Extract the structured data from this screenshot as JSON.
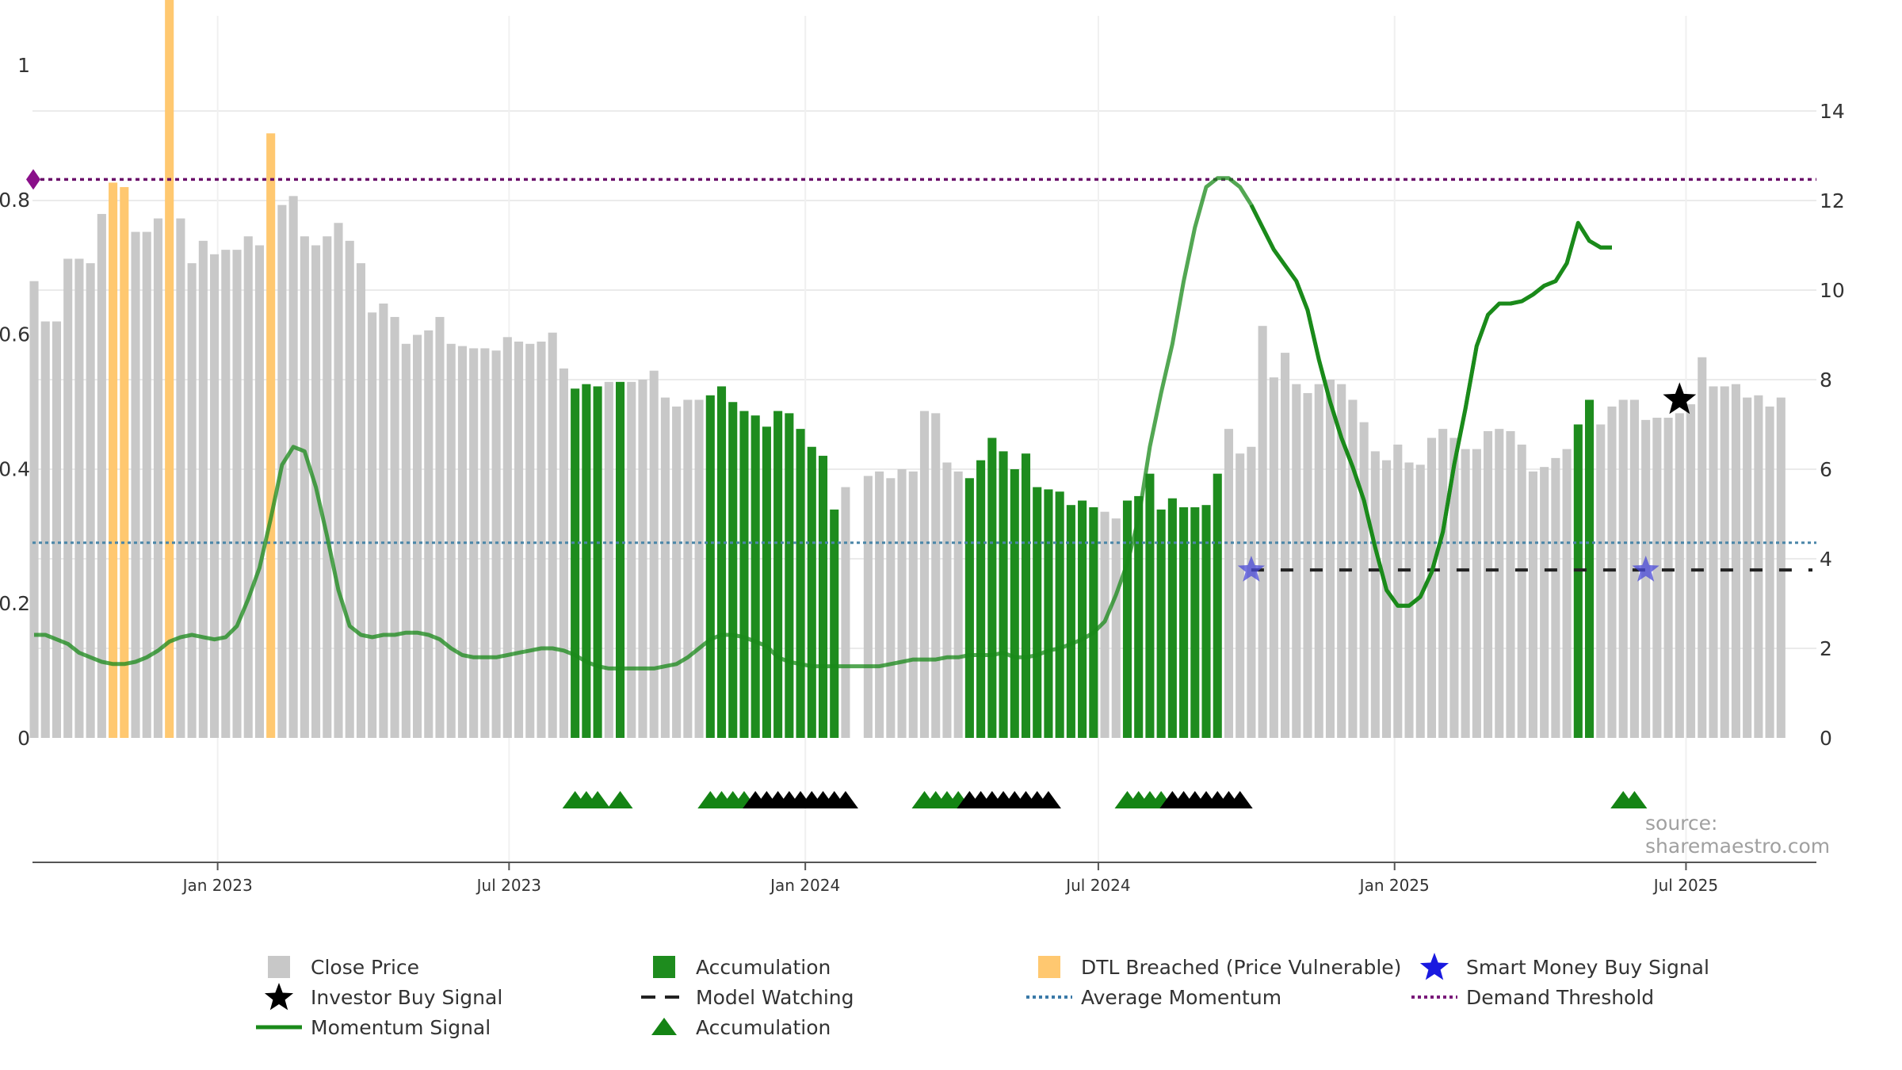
{
  "chart_data": {
    "type": "bar",
    "title": "",
    "source_text": "source: sharemaestro.com",
    "left_axis": {
      "ylim": [
        0,
        1
      ],
      "ticks": [
        0,
        0.2,
        0.4,
        0.6,
        0.8,
        1
      ],
      "tick_labels": [
        "0",
        "0.2",
        "0.4",
        "0.6",
        "0.8",
        "1"
      ]
    },
    "right_axis": {
      "ylim": [
        0,
        15
      ],
      "ticks": [
        0,
        2,
        4,
        6,
        8,
        10,
        12,
        14
      ],
      "tick_labels": [
        "0",
        "2",
        "4",
        "6",
        "8",
        "10",
        "12",
        "14"
      ]
    },
    "x_axis": {
      "ticks": [
        "2023-01-01",
        "2023-07-01",
        "2024-01-01",
        "2024-07-01",
        "2025-01-01",
        "2025-07-01"
      ],
      "tick_labels": [
        "Jan 2023",
        "Jul 2023",
        "Jan 2024",
        "Jul 2024",
        "Jan 2025",
        "Jul 2025"
      ],
      "range": [
        "2022-09-08",
        "2025-09-20"
      ]
    },
    "grid": true,
    "legend_position": "bottom",
    "colors": {
      "close": "#c8c8c8",
      "accumulation": "#1e8c1e",
      "dtl": "#ffc870",
      "momentum": "#1a8a1a",
      "average": "#4a86a8",
      "demand": "#6a0f6a",
      "model_watching": "#222222",
      "smart_money": "#4a4ad8",
      "investor": "#000000"
    },
    "close_price": {
      "start": "2022-09-09",
      "weeks": 159,
      "values": [
        10.2,
        9.3,
        9.3,
        10.7,
        10.7,
        10.6,
        11.7,
        12.4,
        12.3,
        11.3,
        11.3,
        11.6,
        20.4,
        11.6,
        10.6,
        11.1,
        10.8,
        10.9,
        10.9,
        11.2,
        11.0,
        13.5,
        11.9,
        12.1,
        11.2,
        11.0,
        11.2,
        11.5,
        11.1,
        10.6,
        9.5,
        9.7,
        9.4,
        8.8,
        9.0,
        9.1,
        9.4,
        8.8,
        8.75,
        8.7,
        8.7,
        8.65,
        8.95,
        8.85,
        8.8,
        8.85,
        9.05,
        8.25,
        7.8,
        7.9,
        7.85,
        7.95,
        7.95,
        7.95,
        8.0,
        8.2,
        7.6,
        7.4,
        7.55,
        7.55,
        7.65,
        7.85,
        7.5,
        7.3,
        7.2,
        6.95,
        7.3,
        7.25,
        6.9,
        6.5,
        6.3,
        5.1,
        5.6,
        0,
        5.85,
        5.95,
        5.8,
        6.0,
        5.95,
        7.3,
        7.25,
        6.15,
        5.95,
        5.8,
        6.2,
        6.7,
        6.4,
        6.0,
        6.35,
        5.6,
        5.55,
        5.5,
        5.2,
        5.3,
        5.15,
        5.05,
        4.9,
        5.3,
        5.4,
        5.9,
        5.1,
        5.35,
        5.15,
        5.15,
        5.2,
        5.9,
        6.9,
        6.35,
        6.5,
        9.2,
        8.05,
        8.6,
        7.9,
        7.7,
        7.9,
        8.0,
        7.9,
        7.55,
        7.05,
        6.4,
        6.2,
        6.55,
        6.15,
        6.1,
        6.7,
        6.9,
        6.7,
        6.45,
        6.45,
        6.85,
        6.9,
        6.85,
        6.55,
        5.95,
        6.05,
        6.25,
        6.45,
        7.0,
        7.55,
        7.0,
        7.4,
        7.55,
        7.55,
        7.1,
        7.15,
        7.15,
        7.25,
        7.45,
        8.5,
        7.85,
        7.85,
        7.9,
        7.6,
        7.65,
        7.4,
        7.6
      ],
      "accumulation_weeks": [
        48,
        49,
        50,
        52,
        60,
        61,
        62,
        63,
        64,
        65,
        66,
        67,
        68,
        69,
        70,
        71,
        83,
        84,
        85,
        86,
        87,
        88,
        89,
        90,
        91,
        92,
        93,
        94,
        97,
        98,
        99,
        100,
        101,
        102,
        103,
        104,
        105,
        137,
        138
      ],
      "dtl_weeks": [
        7,
        8,
        12,
        21
      ]
    },
    "momentum_signal": {
      "start": "2022-09-09",
      "points": [
        2.3,
        2.3,
        2.2,
        2.1,
        1.9,
        1.8,
        1.7,
        1.65,
        1.65,
        1.7,
        1.8,
        1.95,
        2.15,
        2.25,
        2.3,
        2.25,
        2.2,
        2.25,
        2.5,
        3.1,
        3.8,
        4.9,
        6.1,
        6.5,
        6.4,
        5.6,
        4.5,
        3.3,
        2.5,
        2.3,
        2.25,
        2.3,
        2.3,
        2.35,
        2.35,
        2.3,
        2.2,
        2.0,
        1.85,
        1.8,
        1.8,
        1.8,
        1.85,
        1.9,
        1.95,
        2.0,
        2.0,
        1.95,
        1.85,
        1.7,
        1.6,
        1.55,
        1.55,
        1.55,
        1.55,
        1.55,
        1.6,
        1.65,
        1.8,
        2.0,
        2.2,
        2.3,
        2.3,
        2.25,
        2.15,
        2.05,
        1.8,
        1.7,
        1.65,
        1.6,
        1.6,
        1.6,
        1.6,
        1.6,
        1.6,
        1.6,
        1.65,
        1.7,
        1.75,
        1.75,
        1.75,
        1.8,
        1.8,
        1.85,
        1.85,
        1.85,
        1.9,
        1.8,
        1.8,
        1.85,
        1.95,
        2.0,
        2.1,
        2.2,
        2.35,
        2.6,
        3.2,
        3.9,
        4.9,
        6.5,
        7.7,
        8.8,
        10.2,
        11.4,
        12.3,
        12.5,
        12.5,
        12.3,
        11.9,
        11.4,
        10.9,
        10.55,
        10.2,
        9.55,
        8.45,
        7.5,
        6.7,
        6.05,
        5.3,
        4.25,
        3.3,
        2.95,
        2.95,
        3.15,
        3.7,
        4.6,
        6.1,
        7.35,
        8.75,
        9.45,
        9.7,
        9.7,
        9.75,
        9.9,
        10.1,
        10.2,
        10.6,
        11.5,
        11.1,
        10.95,
        10.95
      ],
      "axis": "right"
    },
    "average_momentum": {
      "value": 0.29,
      "axis": "left"
    },
    "demand_threshold": {
      "value": 0.83,
      "axis": "left"
    },
    "model_watching": {
      "from": "2024-10-04",
      "to": "2025-09-19",
      "value": 3.75,
      "axis": "right"
    },
    "smart_money_buy_signals": [
      {
        "date": "2024-10-04",
        "value": 3.75
      },
      {
        "date": "2025-06-06",
        "value": 3.75
      }
    ],
    "investor_buy_signal": {
      "date": "2025-06-27",
      "value": 7.55
    },
    "accumulation_markers": {
      "green": [
        "2023-08-11",
        "2023-08-18",
        "2023-08-25",
        "2023-09-08",
        "2023-11-03",
        "2023-11-10",
        "2023-11-17",
        "2023-11-24",
        "2024-03-15",
        "2024-03-22",
        "2024-03-29",
        "2024-04-05",
        "2024-07-19",
        "2024-07-26",
        "2024-08-02",
        "2024-08-09",
        "2025-05-23",
        "2025-05-30"
      ],
      "black": [
        "2023-12-01",
        "2023-12-08",
        "2023-12-15",
        "2023-12-22",
        "2023-12-29",
        "2024-01-05",
        "2024-01-12",
        "2024-01-19",
        "2024-01-26",
        "2024-04-12",
        "2024-04-19",
        "2024-04-26",
        "2024-05-03",
        "2024-05-10",
        "2024-05-17",
        "2024-05-24",
        "2024-05-31",
        "2024-08-16",
        "2024-08-23",
        "2024-08-30",
        "2024-09-06",
        "2024-09-13",
        "2024-09-20",
        "2024-09-27"
      ]
    },
    "legend": [
      {
        "key": "close",
        "label": "Close Price",
        "symbol": "square"
      },
      {
        "key": "accumulation",
        "label": "Accumulation",
        "symbol": "square"
      },
      {
        "key": "dtl",
        "label": "DTL Breached (Price Vulnerable)",
        "symbol": "square"
      },
      {
        "key": "smart_money",
        "label": "Smart Money Buy Signal",
        "symbol": "star"
      },
      {
        "key": "investor",
        "label": "Investor Buy Signal",
        "symbol": "star"
      },
      {
        "key": "model_watching",
        "label": "Model Watching",
        "symbol": "dash"
      },
      {
        "key": "average",
        "label": "Average Momentum",
        "symbol": "dotted"
      },
      {
        "key": "demand",
        "label": "Demand Threshold",
        "symbol": "dotted"
      },
      {
        "key": "momentum",
        "label": "Momentum Signal",
        "symbol": "line"
      },
      {
        "key": "accumulation",
        "label": "Accumulation",
        "symbol": "triangle"
      }
    ]
  }
}
